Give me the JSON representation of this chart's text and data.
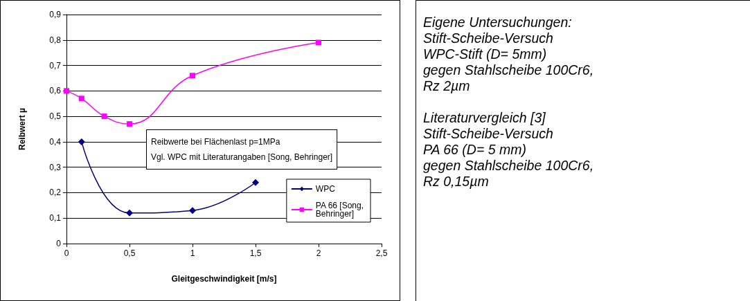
{
  "chart_data": {
    "type": "line",
    "xlabel": "Gleitgeschwindigkeit [m/s]",
    "ylabel": "Reibwert µ",
    "xlim": [
      0,
      2.5
    ],
    "xticks": [
      0,
      {
        "value": 0.5,
        "label": "0,5"
      },
      1,
      {
        "value": 1.5,
        "label": "1,5"
      },
      2,
      {
        "value": 2.5,
        "label": "2,5"
      }
    ],
    "ylim": [
      0,
      0.9
    ],
    "yticks": [
      0,
      {
        "value": 0.1,
        "label": "0,1"
      },
      {
        "value": 0.2,
        "label": "0,2"
      },
      {
        "value": 0.3,
        "label": "0,3"
      },
      {
        "value": 0.4,
        "label": "0,4"
      },
      {
        "value": 0.5,
        "label": "0,5"
      },
      {
        "value": 0.6,
        "label": "0,6"
      },
      {
        "value": 0.7,
        "label": "0,7"
      },
      {
        "value": 0.8,
        "label": "0,8"
      },
      {
        "value": 0.9,
        "label": "0,9"
      }
    ],
    "grid": "y",
    "legend": "right",
    "series": [
      {
        "name": "WPC",
        "color": "#000080",
        "marker": "diamond",
        "x": [
          0.12,
          0.5,
          1,
          1.5
        ],
        "values": [
          0.4,
          0.12,
          0.13,
          0.24
        ]
      },
      {
        "name": "PA 66 [Song, Behringer]",
        "color": "#ff00ff",
        "marker": "square",
        "x": [
          0,
          0.12,
          0.3,
          0.5,
          1,
          2
        ],
        "values": [
          0.6,
          0.57,
          0.5,
          0.47,
          0.66,
          0.79
        ]
      }
    ],
    "annotations": [
      "Reibwerte bei Flächenlast p=1MPa\nVgl. WPC mit Literaturangaben [Song, Behringer]",
      "Eigene Untersuchungen:\nStift-Scheibe-Versuch\nWPC-Stift (D= 5mm)\ngegen Stahlscheibe 100Cr6,\nRz 2µm",
      "Literaturvergleich [3]\nStift-Scheibe-Versuch\nPA 66 (D= 5 mm)\ngegen Stahlscheibe 100Cr6,\nRz 0,15µm"
    ]
  }
}
